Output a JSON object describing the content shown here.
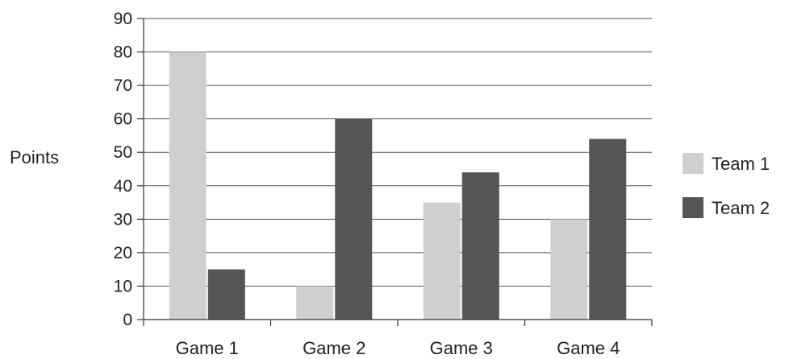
{
  "chart_data": {
    "type": "bar",
    "title": "",
    "xlabel": "",
    "ylabel": "Points",
    "ylim": [
      0,
      90
    ],
    "yticks": [
      0,
      10,
      20,
      30,
      40,
      50,
      60,
      70,
      80,
      90
    ],
    "categories": [
      "Game 1",
      "Game 2",
      "Game 3",
      "Game 4"
    ],
    "series": [
      {
        "name": "Team 1",
        "values": [
          80,
          10,
          35,
          30
        ],
        "color": "#cfcfcf"
      },
      {
        "name": "Team 2",
        "values": [
          15,
          60,
          44,
          54
        ],
        "color": "#555555"
      }
    ],
    "grid": true,
    "legend": "right"
  }
}
